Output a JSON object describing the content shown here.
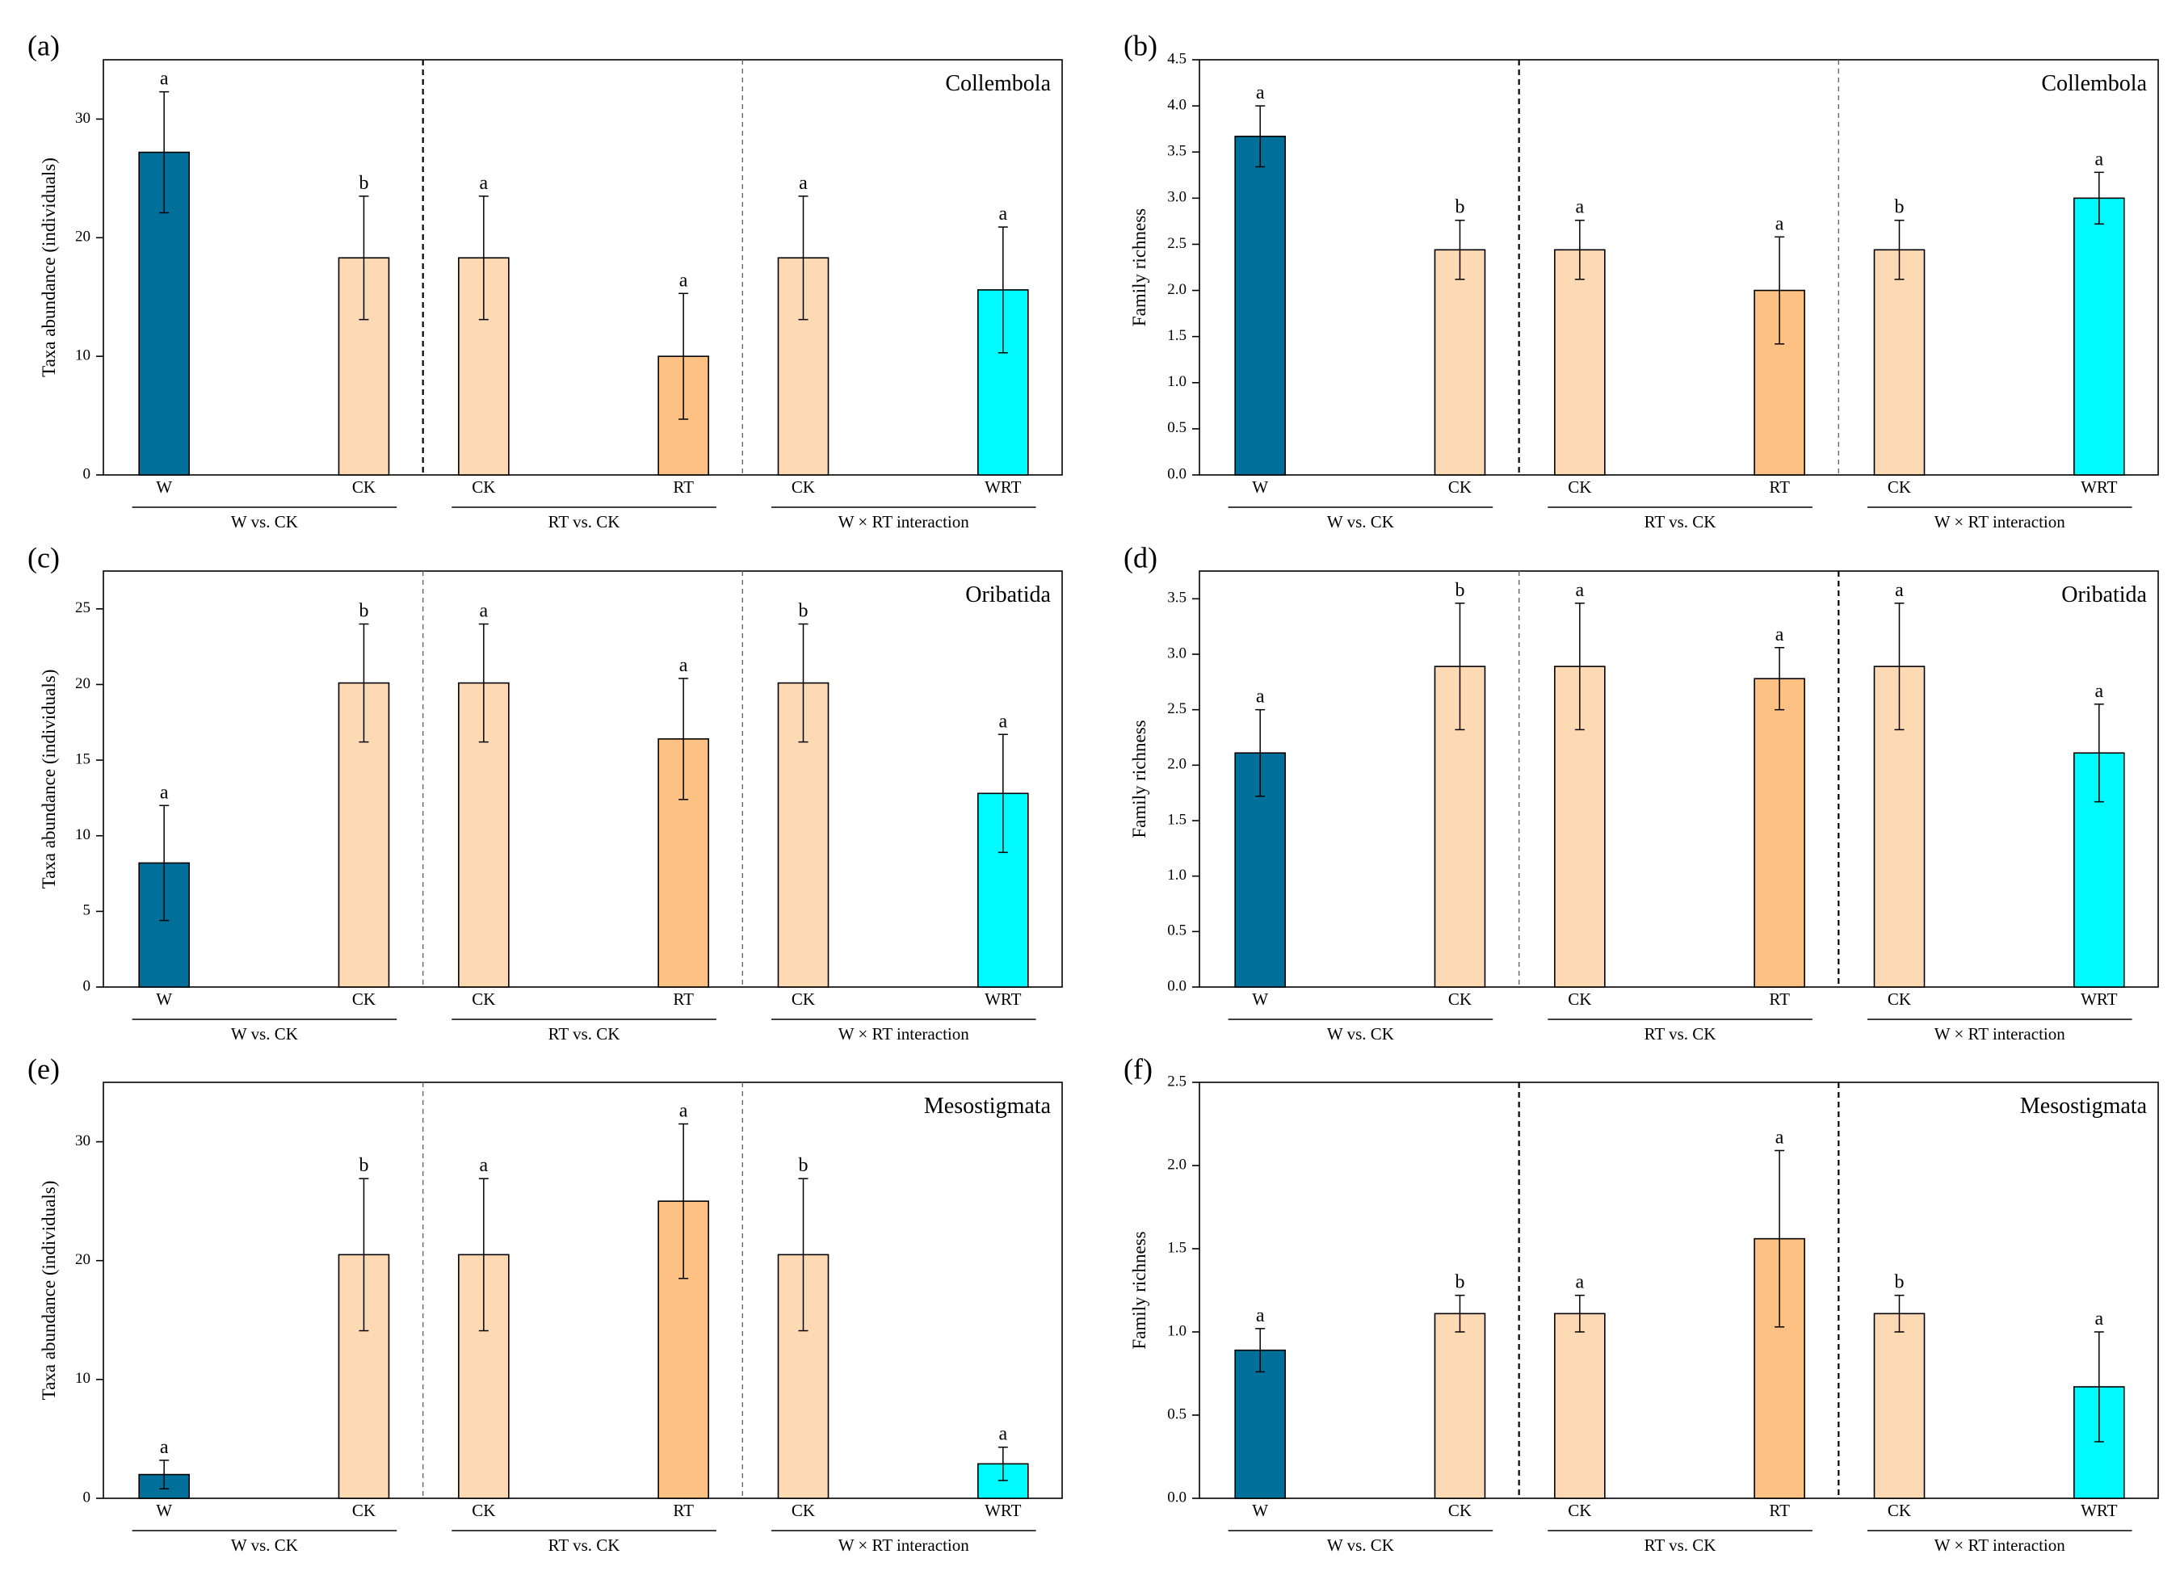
{
  "colors": {
    "W": "#00709b",
    "CK": "#fedab4",
    "RT": "#fdc183",
    "WRT": "#00fafe"
  },
  "chart_data": [
    {
      "type": "bar",
      "panel": "(a)",
      "taxon": "Collembola",
      "ylabel": "Taxa abundance (individuals)",
      "ylim": [
        0,
        35
      ],
      "yticks": [
        0,
        10,
        20,
        30
      ],
      "groups": [
        {
          "label": "W vs. CK",
          "bars": [
            {
              "category": "W",
              "value": 27.2,
              "err": 5.1,
              "letter": "a",
              "color_key": "W"
            },
            {
              "category": "CK",
              "value": 18.3,
              "err": 5.2,
              "letter": "b",
              "color_key": "CK"
            }
          ]
        },
        {
          "label": "RT vs. CK",
          "bars": [
            {
              "category": "CK",
              "value": 18.3,
              "err": 5.2,
              "letter": "a",
              "color_key": "CK"
            },
            {
              "category": "RT",
              "value": 10.0,
              "err": 5.3,
              "letter": "a",
              "color_key": "RT"
            }
          ]
        },
        {
          "label": "W × RT interaction",
          "bars": [
            {
              "category": "CK",
              "value": 18.3,
              "err": 5.2,
              "letter": "a",
              "color_key": "CK"
            },
            {
              "category": "WRT",
              "value": 15.6,
              "err": 5.3,
              "letter": "a",
              "color_key": "WRT"
            }
          ]
        }
      ]
    },
    {
      "type": "bar",
      "panel": "(b)",
      "taxon": "Collembola",
      "ylabel": "Family richness",
      "ylim": [
        0,
        4.5
      ],
      "yticks": [
        "0.0",
        "0.5",
        "1.0",
        "1.5",
        "2.0",
        "2.5",
        "3.0",
        "3.5",
        "4.0",
        "4.5"
      ],
      "groups": [
        {
          "label": "W vs. CK",
          "bars": [
            {
              "category": "W",
              "value": 3.67,
              "err": 0.33,
              "letter": "a",
              "color_key": "W"
            },
            {
              "category": "CK",
              "value": 2.44,
              "err": 0.32,
              "letter": "b",
              "color_key": "CK"
            }
          ]
        },
        {
          "label": "RT vs. CK",
          "bars": [
            {
              "category": "CK",
              "value": 2.44,
              "err": 0.32,
              "letter": "a",
              "color_key": "CK"
            },
            {
              "category": "RT",
              "value": 2.0,
              "err": 0.58,
              "letter": "a",
              "color_key": "RT"
            }
          ]
        },
        {
          "label": "W × RT interaction",
          "bars": [
            {
              "category": "CK",
              "value": 2.44,
              "err": 0.32,
              "letter": "b",
              "color_key": "CK"
            },
            {
              "category": "WRT",
              "value": 3.0,
              "err": 0.28,
              "letter": "a",
              "color_key": "WRT"
            }
          ]
        }
      ]
    },
    {
      "type": "bar",
      "panel": "(c)",
      "taxon": "Oribatida",
      "ylabel": "Taxa abundance (individuals)",
      "ylim": [
        0,
        27.5
      ],
      "yticks": [
        0,
        5,
        10,
        15,
        20,
        25
      ],
      "groups": [
        {
          "label": "W vs. CK",
          "bars": [
            {
              "category": "W",
              "value": 8.2,
              "err": 3.8,
              "letter": "a",
              "color_key": "W"
            },
            {
              "category": "CK",
              "value": 20.1,
              "err": 3.9,
              "letter": "b",
              "color_key": "CK"
            }
          ]
        },
        {
          "label": "RT vs. CK",
          "bars": [
            {
              "category": "CK",
              "value": 20.1,
              "err": 3.9,
              "letter": "a",
              "color_key": "CK"
            },
            {
              "category": "RT",
              "value": 16.4,
              "err": 4.0,
              "letter": "a",
              "color_key": "RT"
            }
          ]
        },
        {
          "label": "W × RT interaction",
          "bars": [
            {
              "category": "CK",
              "value": 20.1,
              "err": 3.9,
              "letter": "b",
              "color_key": "CK"
            },
            {
              "category": "WRT",
              "value": 12.8,
              "err": 3.9,
              "letter": "a",
              "color_key": "WRT"
            }
          ]
        }
      ]
    },
    {
      "type": "bar",
      "panel": "(d)",
      "taxon": "Oribatida",
      "ylabel": "Family richness",
      "ylim": [
        0,
        3.75
      ],
      "yticks": [
        "0.0",
        "0.5",
        "1.0",
        "1.5",
        "2.0",
        "2.5",
        "3.0",
        "3.5"
      ],
      "groups": [
        {
          "label": "W vs. CK",
          "bars": [
            {
              "category": "W",
              "value": 2.11,
              "err": 0.39,
              "letter": "a",
              "color_key": "W"
            },
            {
              "category": "CK",
              "value": 2.89,
              "err": 0.57,
              "letter": "b",
              "color_key": "CK"
            }
          ]
        },
        {
          "label": "RT vs. CK",
          "bars": [
            {
              "category": "CK",
              "value": 2.89,
              "err": 0.57,
              "letter": "a",
              "color_key": "CK"
            },
            {
              "category": "RT",
              "value": 2.78,
              "err": 0.28,
              "letter": "a",
              "color_key": "RT"
            }
          ]
        },
        {
          "label": "W × RT interaction",
          "bars": [
            {
              "category": "CK",
              "value": 2.89,
              "err": 0.57,
              "letter": "a",
              "color_key": "CK"
            },
            {
              "category": "WRT",
              "value": 2.11,
              "err": 0.44,
              "letter": "a",
              "color_key": "WRT"
            }
          ]
        }
      ]
    },
    {
      "type": "bar",
      "panel": "(e)",
      "taxon": "Mesostigmata",
      "ylabel": "Taxa abundance (individuals)",
      "ylim": [
        0,
        35
      ],
      "yticks": [
        0,
        10,
        20,
        30
      ],
      "groups": [
        {
          "label": "W vs. CK",
          "bars": [
            {
              "category": "W",
              "value": 2.0,
              "err": 1.2,
              "letter": "a",
              "color_key": "W"
            },
            {
              "category": "CK",
              "value": 20.5,
              "err": 6.4,
              "letter": "b",
              "color_key": "CK"
            }
          ]
        },
        {
          "label": "RT vs. CK",
          "bars": [
            {
              "category": "CK",
              "value": 20.5,
              "err": 6.4,
              "letter": "a",
              "color_key": "CK"
            },
            {
              "category": "RT",
              "value": 25.0,
              "err": 6.5,
              "letter": "a",
              "color_key": "RT"
            }
          ]
        },
        {
          "label": "W × RT interaction",
          "bars": [
            {
              "category": "CK",
              "value": 20.5,
              "err": 6.4,
              "letter": "b",
              "color_key": "CK"
            },
            {
              "category": "WRT",
              "value": 2.9,
              "err": 1.4,
              "letter": "a",
              "color_key": "WRT"
            }
          ]
        }
      ]
    },
    {
      "type": "bar",
      "panel": "(f)",
      "taxon": "Mesostigmata",
      "ylabel": "Family richness",
      "ylim": [
        0,
        2.5
      ],
      "yticks": [
        "0.0",
        "0.5",
        "1.0",
        "1.5",
        "2.0",
        "2.5"
      ],
      "groups": [
        {
          "label": "W vs. CK",
          "bars": [
            {
              "category": "W",
              "value": 0.89,
              "err": 0.13,
              "letter": "a",
              "color_key": "W"
            },
            {
              "category": "CK",
              "value": 1.11,
              "err": 0.11,
              "letter": "b",
              "color_key": "CK"
            }
          ]
        },
        {
          "label": "RT vs. CK",
          "bars": [
            {
              "category": "CK",
              "value": 1.11,
              "err": 0.11,
              "letter": "a",
              "color_key": "CK"
            },
            {
              "category": "RT",
              "value": 1.56,
              "err": 0.53,
              "letter": "a",
              "color_key": "RT"
            }
          ]
        },
        {
          "label": "W × RT interaction",
          "bars": [
            {
              "category": "CK",
              "value": 1.11,
              "err": 0.11,
              "letter": "b",
              "color_key": "CK"
            },
            {
              "category": "WRT",
              "value": 0.67,
              "err": 0.33,
              "letter": "a",
              "color_key": "WRT"
            }
          ]
        }
      ]
    }
  ]
}
